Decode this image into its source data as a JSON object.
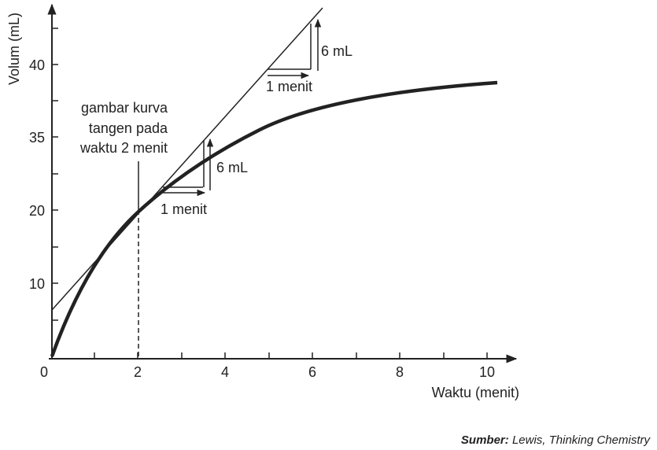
{
  "axes": {
    "x_label": "Waktu (menit)",
    "y_label": "Volum (mL)",
    "x_ticks": [
      "0",
      "2",
      "4",
      "6",
      "8",
      "10"
    ],
    "y_ticks": [
      "10",
      "20",
      "35",
      "40"
    ]
  },
  "annotations": {
    "note": [
      "gambar kurva",
      "tangen pada",
      "waktu 2 menit"
    ],
    "lower_rise": "6 mL",
    "lower_run": "1 menit",
    "upper_rise": "6 mL",
    "upper_run": "1 menit"
  },
  "source": {
    "prefix": "Sumber:",
    "text": "Lewis, Thinking Chemistry"
  }
}
